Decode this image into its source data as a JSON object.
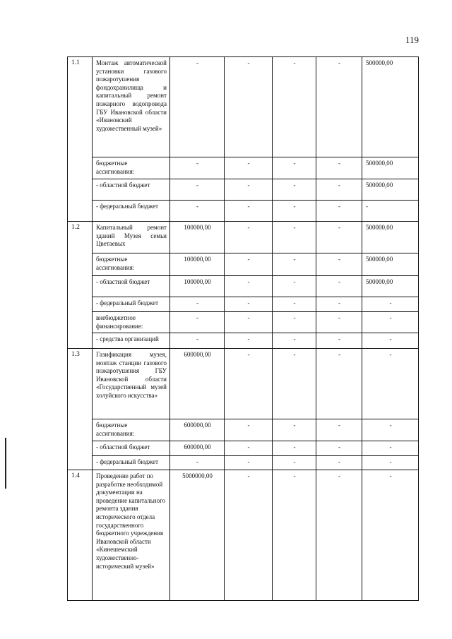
{
  "page_number": "119",
  "table": {
    "groups": [
      {
        "num": "1.1",
        "rows": [
          {
            "label": "Монтаж автоматической установки газового пожаротушения фондохранилища и капитальный ремонт пожарного водопровода ГБУ Ивановской области «Ивановский художественный музей»",
            "values": [
              "-",
              "-",
              "-",
              "-",
              "500000,00"
            ]
          },
          {
            "label": "бюджетные ассигнования:",
            "values": [
              "-",
              "-",
              "-",
              "-",
              "500000,00"
            ]
          },
          {
            "label": "- областной бюджет",
            "values": [
              "-",
              "-",
              "-",
              "-",
              "500000,00"
            ]
          },
          {
            "label": "- федеральный бюджет",
            "values": [
              "-",
              "-",
              "-",
              "-",
              "-"
            ]
          }
        ]
      },
      {
        "num": "1.2",
        "rows": [
          {
            "label": "Капитальный ремонт зданий Музея семьи Цветаевых",
            "values": [
              "100000,00",
              "-",
              "-",
              "-",
              "500000,00"
            ]
          },
          {
            "label": "бюджетные ассигнования:",
            "values": [
              "100000,00",
              "-",
              "-",
              "-",
              "500000,00"
            ]
          },
          {
            "label": "- областной бюджет",
            "values": [
              "100000,00",
              "-",
              "-",
              "-",
              "500000,00"
            ]
          },
          {
            "label": "- федеральный бюджет",
            "values": [
              "-",
              "-",
              "-",
              "-",
              "-"
            ]
          },
          {
            "label": "внебюджетное финансирование:",
            "values": [
              "-",
              "-",
              "-",
              "-",
              "-"
            ]
          },
          {
            "label": "- средства организаций",
            "values": [
              "-",
              "-",
              "-",
              "-",
              "-"
            ]
          }
        ]
      },
      {
        "num": "1.3",
        "rows": [
          {
            "label": "Газификация музея, монтаж станции газового пожаротушения ГБУ Ивановской области «Государственный музей холуйского искусства»",
            "values": [
              "600000,00",
              "-",
              "-",
              "-",
              "-"
            ]
          },
          {
            "label": "бюджетные ассигнования:",
            "values": [
              "600000,00",
              "-",
              "-",
              "-",
              "-"
            ]
          },
          {
            "label": "- областной бюджет",
            "values": [
              "600000,00",
              "-",
              "-",
              "-",
              "-"
            ]
          },
          {
            "label": "- федеральный бюджет",
            "values": [
              "-",
              "-",
              "-",
              "-",
              "-"
            ]
          }
        ]
      },
      {
        "num": "1.4",
        "rows": [
          {
            "label": "Проведение работ по разработке необходимой документации на проведение капитального ремонта здания исторического отдела государственного бюджетного учреждения Ивановской области «Кинешемский художественно-исторический музей»",
            "values": [
              "5000000,00",
              "-",
              "-",
              "-",
              "-"
            ]
          }
        ]
      }
    ]
  }
}
